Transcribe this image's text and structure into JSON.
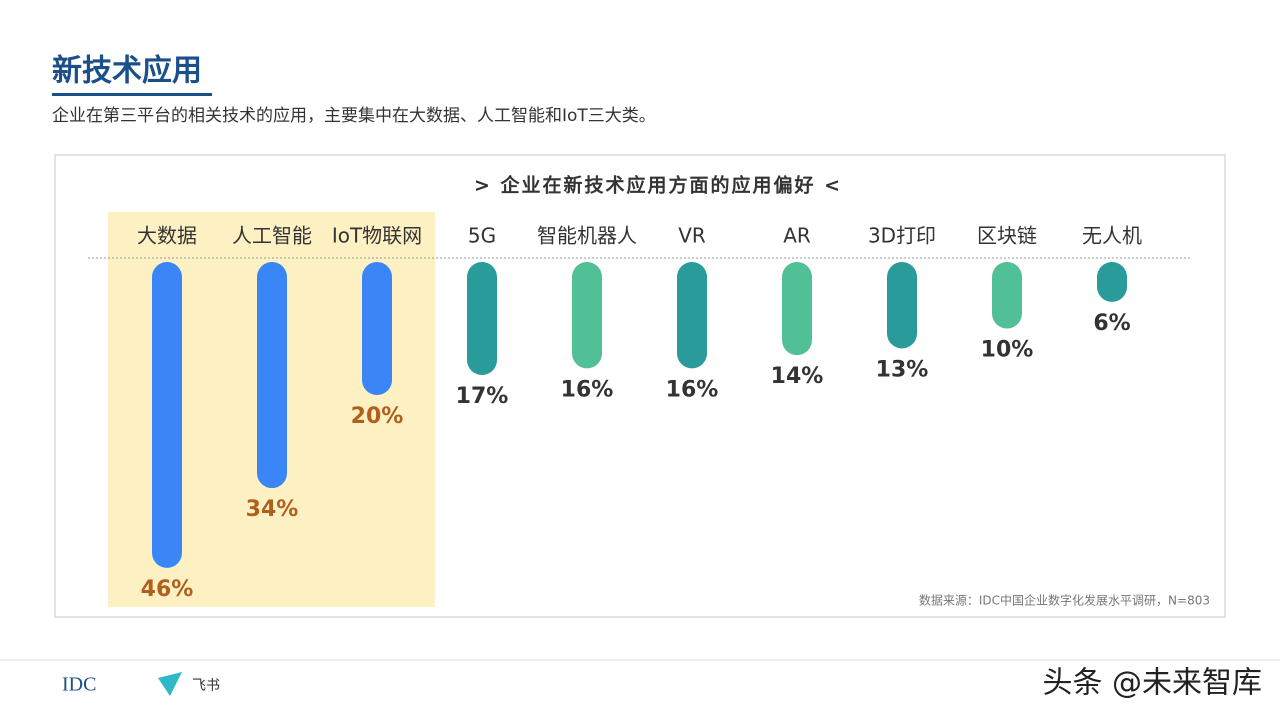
{
  "header": {
    "title": "新技术应用",
    "subtitle": "企业在第三平台的相关技术的应用，主要集中在大数据、人工智能和IoT三大类。"
  },
  "chart_data": {
    "type": "bar",
    "title": "> 企业在新技术应用方面的应用偏好 <",
    "categories": [
      "大数据",
      "人工智能",
      "IoT物联网",
      "5G",
      "智能机器人",
      "VR",
      "AR",
      "3D打印",
      "区块链",
      "无人机"
    ],
    "values": [
      46,
      34,
      20,
      17,
      16,
      16,
      14,
      13,
      10,
      6
    ],
    "value_labels": [
      "46%",
      "34%",
      "20%",
      "17%",
      "16%",
      "16%",
      "14%",
      "13%",
      "10%",
      "6%"
    ],
    "colors": [
      "#3a86f7",
      "#3a86f7",
      "#3a86f7",
      "#2a9b9b",
      "#52c096",
      "#2a9b9b",
      "#52c096",
      "#2a9b9b",
      "#52c096",
      "#2a9b9b"
    ],
    "label_colors": [
      "#b0601c",
      "#b0601c",
      "#b0601c",
      "#333333",
      "#333333",
      "#333333",
      "#333333",
      "#333333",
      "#333333",
      "#333333"
    ],
    "source": "数据来源：IDC中国企业数字化发展水平调研，N=803"
  },
  "footer": {
    "logo_left": "IDC",
    "logo_right": "飞书",
    "watermark": "头条 @未来智库"
  }
}
